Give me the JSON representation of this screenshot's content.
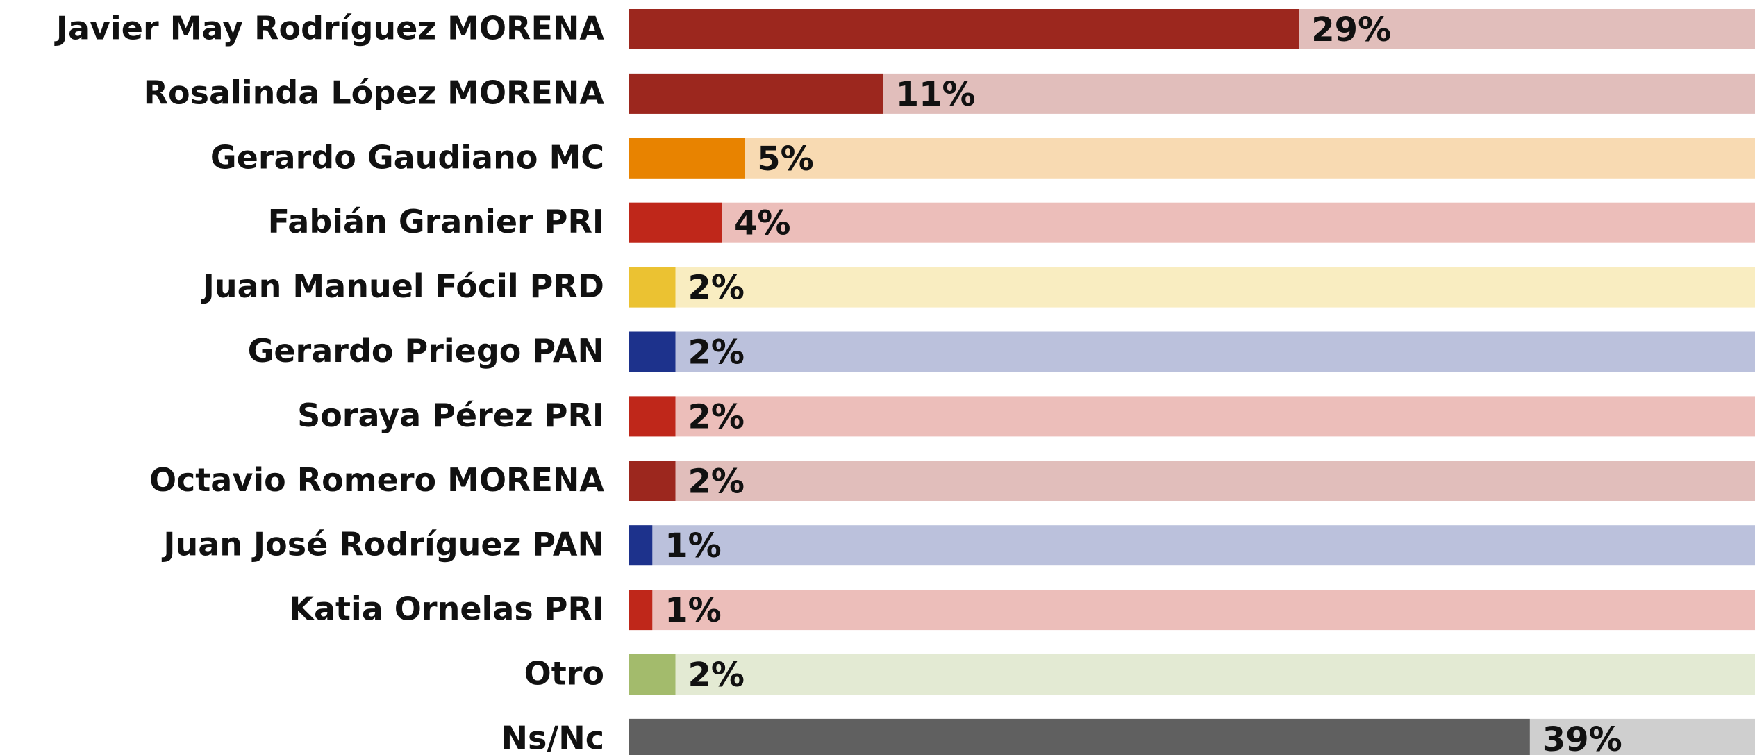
{
  "chart_data": {
    "type": "bar",
    "orientation": "horizontal",
    "categories": [
      "Javier May Rodríguez MORENA",
      "Rosalinda López MORENA",
      "Gerardo Gaudiano MC",
      "Fabián Granier PRI",
      "Juan Manuel Fócil PRD",
      "Gerardo Priego PAN",
      "Soraya Pérez PRI",
      "Octavio Romero MORENA",
      "Juan José Rodríguez PAN",
      "Katia Ornelas PRI",
      "Otro",
      "Ns/Nc"
    ],
    "values": [
      29,
      11,
      5,
      4,
      2,
      2,
      2,
      2,
      1,
      1,
      2,
      39
    ],
    "value_labels": [
      "29%",
      "11%",
      "5%",
      "4%",
      "2%",
      "2%",
      "2%",
      "2%",
      "1%",
      "1%",
      "2%",
      "39%"
    ],
    "colors": [
      "#9c271e",
      "#9c271e",
      "#e88300",
      "#bf271a",
      "#ebc232",
      "#1d328c",
      "#bf271a",
      "#9c271e",
      "#1d328c",
      "#bf271a",
      "#a3bb6c",
      "#606060"
    ]
  }
}
